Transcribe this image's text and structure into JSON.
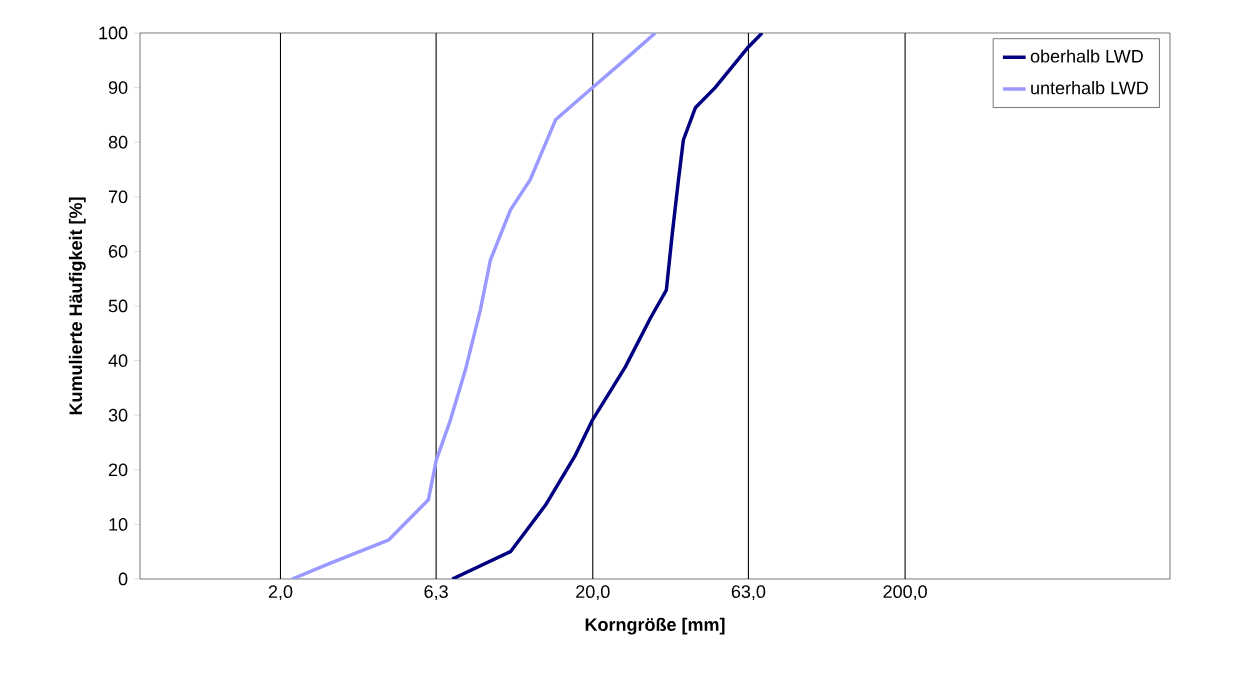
{
  "chart_data": {
    "type": "line",
    "xlabel": "Korngröße [mm]",
    "ylabel": "Kumulierte Häufigkeit [%]",
    "log": "x",
    "xlim": [
      0.71,
      1410
    ],
    "ylim": [
      0,
      100
    ],
    "xticks": [
      {
        "value": 2,
        "label": "2,0"
      },
      {
        "value": 6.3,
        "label": "6,3"
      },
      {
        "value": 20,
        "label": "20,0"
      },
      {
        "value": 63,
        "label": "63,0"
      },
      {
        "value": 200,
        "label": "200,0"
      }
    ],
    "yticks": [
      0,
      10,
      20,
      30,
      40,
      50,
      60,
      70,
      80,
      90,
      100
    ],
    "grid": "x",
    "legend": "top right",
    "marker": "none",
    "line_style": "solid",
    "series": [
      {
        "name": "oberhalb LWD",
        "color": "#000080",
        "x": [
          7.1,
          10.9,
          14.1,
          17.6,
          19.9,
          25.4,
          30.6,
          34.4,
          35.9,
          37.6,
          39.0,
          42.6,
          49.3,
          62.9,
          69.7
        ],
        "values": [
          0,
          5,
          13.5,
          22.7,
          29,
          38.8,
          47.8,
          52.9,
          63,
          73,
          80.4,
          86.3,
          90,
          97.4,
          100
        ]
      },
      {
        "name": "unterhalb LWD",
        "color": "#9999ff",
        "x": [
          2.18,
          2.89,
          4.43,
          5.95,
          6.31,
          7.0,
          7.82,
          8.73,
          9.4,
          10.9,
          12.6,
          15.2,
          19.6,
          26.4,
          31.7
        ],
        "values": [
          0,
          2.9,
          7.1,
          14.5,
          21.8,
          29.1,
          38.3,
          49.3,
          58.4,
          67.6,
          73.1,
          84.1,
          89.6,
          96.0,
          100
        ]
      }
    ]
  }
}
